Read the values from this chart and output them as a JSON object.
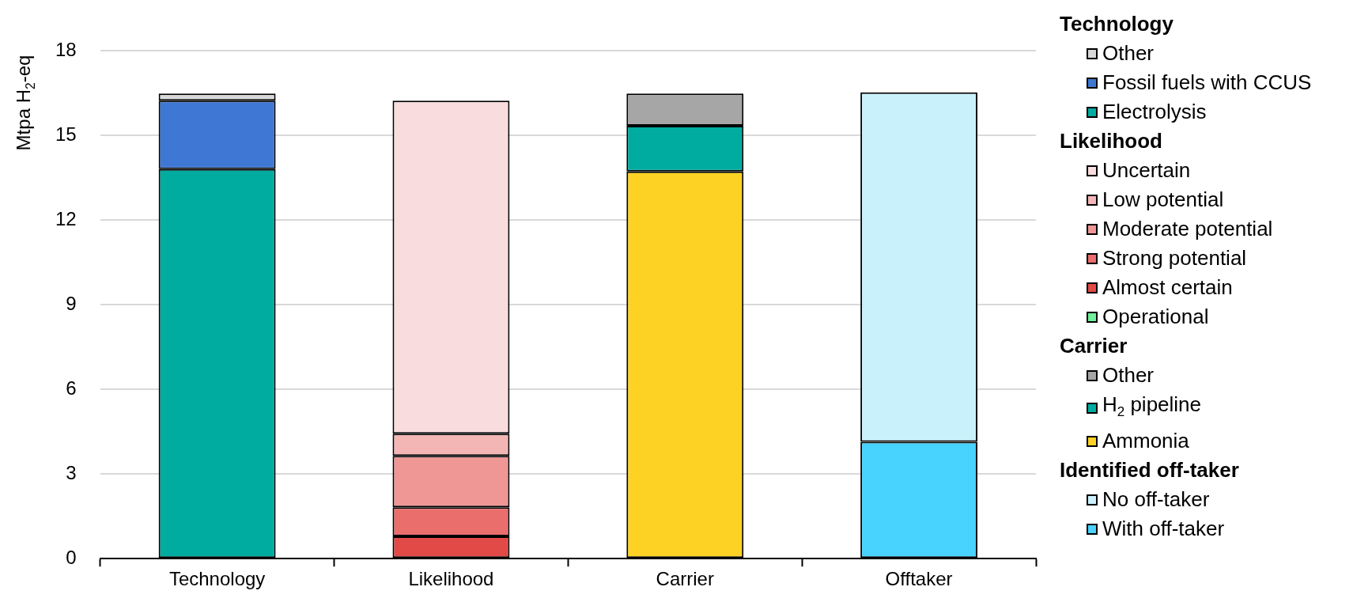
{
  "chart_data": {
    "type": "bar",
    "stacked": true,
    "ylabel": "Mtpa H$_{2}$-eq",
    "categories": [
      "Technology",
      "Likelihood",
      "Carrier",
      "Offtaker"
    ],
    "ylim": [
      0,
      18
    ],
    "yticks": [
      0,
      3,
      6,
      9,
      12,
      15,
      18
    ],
    "grid": "y",
    "legend": "right",
    "annotations": [
      "Technology",
      "Likelihood",
      "Carrier",
      "Identified off-taker"
    ],
    "series": [
      {
        "name": "Electrolysis",
        "color": "#00aca0",
        "values": [
          13.8,
          null,
          null,
          null
        ]
      },
      {
        "name": "Fossil fuels with CCUS",
        "color": "#3f78d4",
        "values": [
          2.43,
          null,
          null,
          null
        ]
      },
      {
        "name": "Other",
        "color": "#d9d9d9",
        "values": [
          0.25,
          null,
          null,
          null
        ]
      },
      {
        "name": "Operational",
        "color": "#6ff09a",
        "values": [
          null,
          0,
          null,
          null
        ]
      },
      {
        "name": "Almost certain",
        "color": "#e24a48",
        "values": [
          null,
          0.79,
          null,
          null
        ]
      },
      {
        "name": "Strong potential",
        "color": "#e96e6c",
        "values": [
          null,
          1.03,
          null,
          null
        ]
      },
      {
        "name": "Moderate potential",
        "color": "#ee9794",
        "values": [
          null,
          1.82,
          null,
          null
        ]
      },
      {
        "name": "Low potential",
        "color": "#f4b6b5",
        "values": [
          null,
          0.79,
          null,
          null
        ]
      },
      {
        "name": "Uncertain",
        "color": "#f9dcdd",
        "values": [
          null,
          11.8,
          null,
          null
        ]
      },
      {
        "name": "Ammonia",
        "color": "#fdd225",
        "values": [
          null,
          null,
          13.72,
          null
        ]
      },
      {
        "name": "H$_{2}$ pipeline",
        "color": "#00aca0",
        "values": [
          null,
          null,
          1.62,
          null
        ]
      },
      {
        "name": "Other",
        "color": "#a6a6a6",
        "values": [
          null,
          null,
          1.14,
          null
        ]
      },
      {
        "name": "With off-taker",
        "color": "#48d3ff",
        "values": [
          null,
          null,
          null,
          4.14
        ]
      },
      {
        "name": "No off-taker",
        "color": "#c9f1fc",
        "values": [
          null,
          null,
          null,
          12.38
        ]
      }
    ]
  }
}
